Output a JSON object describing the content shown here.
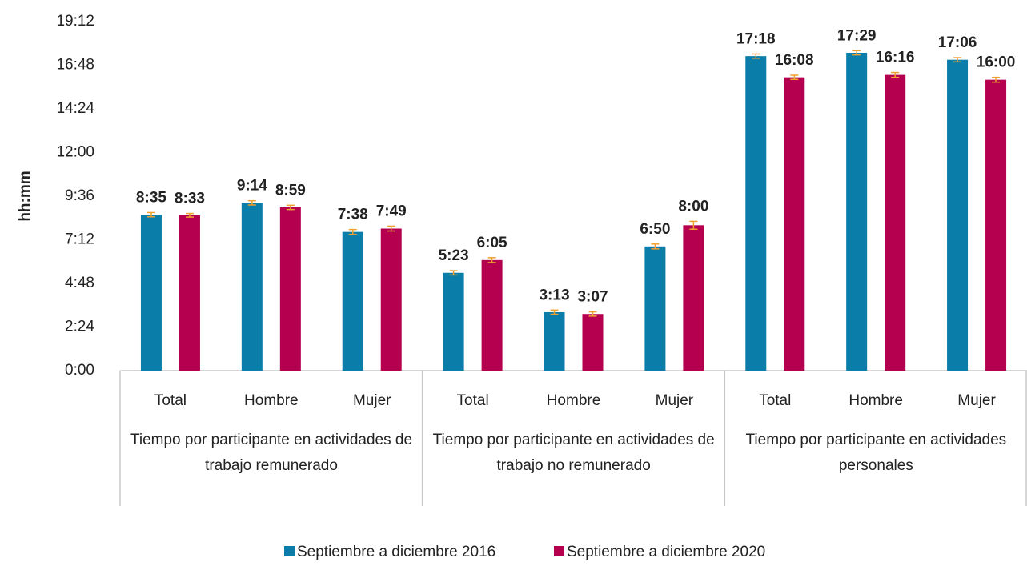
{
  "chart_data": {
    "type": "bar",
    "ylabel": "hh:mm",
    "categories": [
      "Total",
      "Hombre",
      "Mujer",
      "Total",
      "Hombre",
      "Mujer",
      "Total",
      "Hombre",
      "Mujer"
    ],
    "groups": [
      "Tiempo por participante en actividades de trabajo remunerado",
      "Tiempo por participante en actividades de trabajo no remunerado",
      "Tiempo por participante en actividades personales"
    ],
    "series": [
      {
        "name": "Septiembre a diciembre 2016",
        "color": "#0a7ea8",
        "values": [
          515,
          554,
          458,
          323,
          193,
          410,
          1038,
          1049,
          1026
        ],
        "value_labels": [
          "8:35",
          "9:14",
          "7:38",
          "5:23",
          "3:13",
          "6:50",
          "17:18",
          "17:29",
          "17:06"
        ],
        "errors": [
          7,
          7,
          8,
          7,
          7,
          8,
          7,
          7,
          7
        ]
      },
      {
        "name": "Septiembre a diciembre 2020",
        "color": "#b5004f",
        "values": [
          513,
          539,
          469,
          365,
          187,
          480,
          968,
          976,
          960
        ],
        "value_labels": [
          "8:33",
          "8:59",
          "7:49",
          "6:05",
          "3:07",
          "8:00",
          "16:08",
          "16:16",
          "16:00"
        ],
        "errors": [
          6,
          7,
          8,
          8,
          7,
          13,
          7,
          8,
          8
        ]
      }
    ],
    "error_color": "#f0a030",
    "ylim": [
      0,
      1152
    ],
    "yticks": [
      {
        "value": 0,
        "label": "0:00"
      },
      {
        "value": 144,
        "label": "2:24"
      },
      {
        "value": 288,
        "label": "4:48"
      },
      {
        "value": 432,
        "label": "7:12"
      },
      {
        "value": 576,
        "label": "9:36"
      },
      {
        "value": 720,
        "label": "12:00"
      },
      {
        "value": 864,
        "label": "14:24"
      },
      {
        "value": 1008,
        "label": "16:48"
      },
      {
        "value": 1152,
        "label": "19:12"
      }
    ],
    "legend": "bottom"
  }
}
